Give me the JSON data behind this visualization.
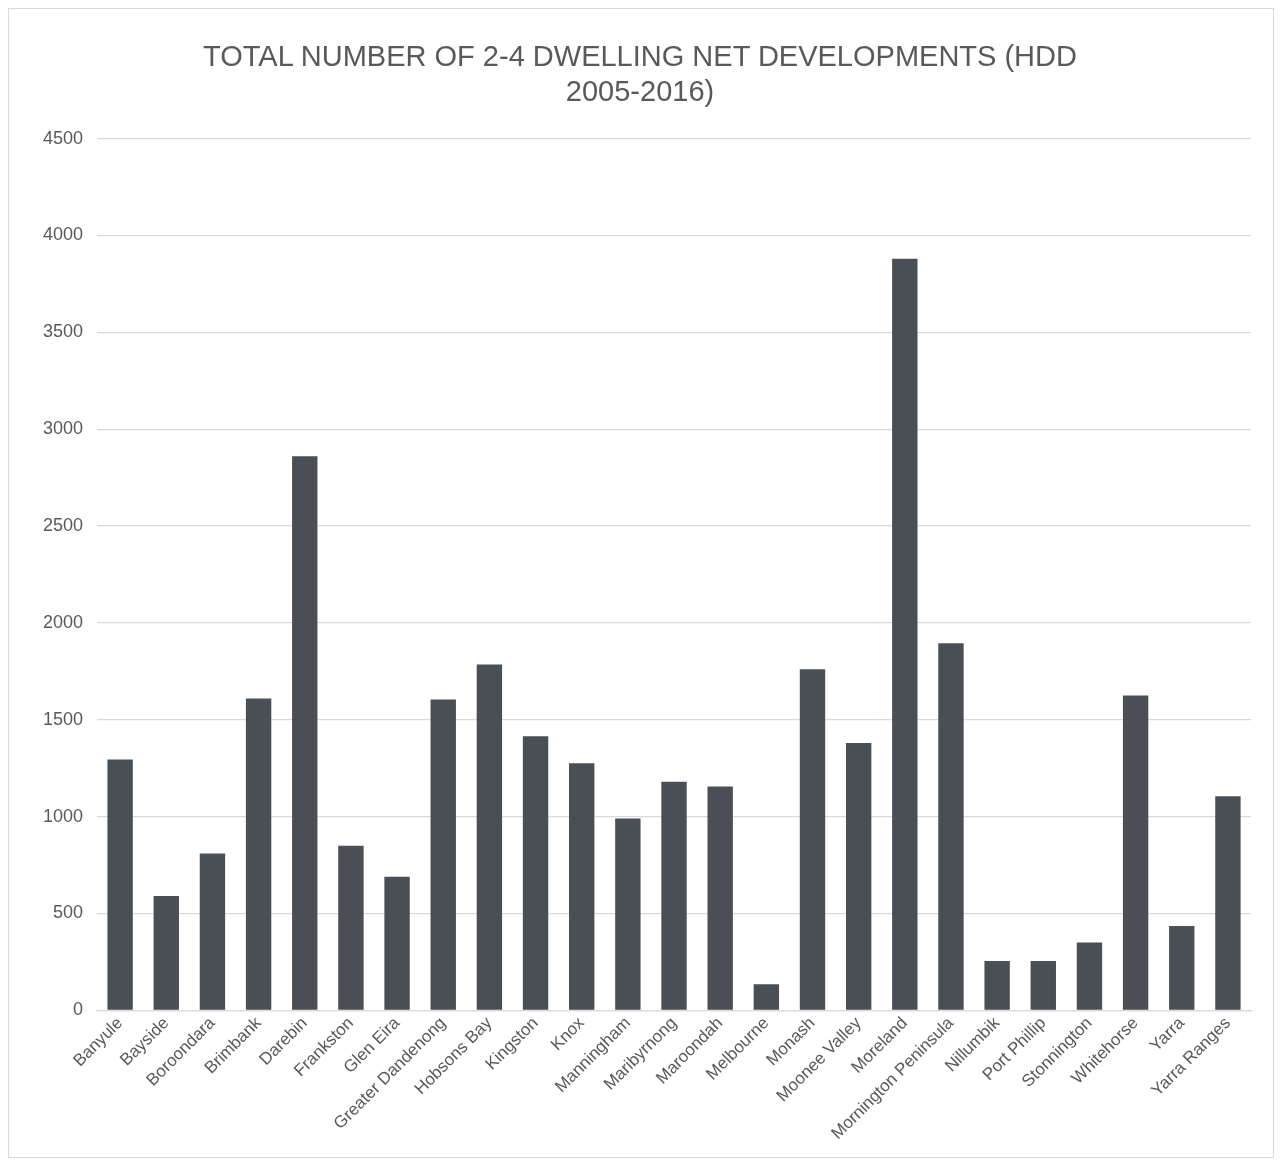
{
  "chart_data": {
    "type": "bar",
    "title": "TOTAL NUMBER OF 2-4 DWELLING NET DEVELOPMENTS (HDD 2005-2016)",
    "categories": [
      "Banyule",
      "Bayside",
      "Boroondara",
      "Brimbank",
      "Darebin",
      "Frankston",
      "Glen Eira",
      "Greater Dandenong",
      "Hobsons Bay",
      "Kingston",
      "Knox",
      "Manningham",
      "Maribyrnong",
      "Maroondah",
      "Melbourne",
      "Monash",
      "Moonee Valley",
      "Moreland",
      "Mornington Peninsula",
      "Nillumbik",
      "Port Phillip",
      "Stonnington",
      "Whitehorse",
      "Yarra",
      "Yarra Ranges"
    ],
    "values": [
      1295,
      590,
      810,
      1610,
      2860,
      850,
      690,
      1605,
      1785,
      1415,
      1275,
      990,
      1180,
      1155,
      135,
      1760,
      1380,
      3880,
      1895,
      255,
      255,
      350,
      1625,
      435,
      1105
    ],
    "color": "#4a4f55",
    "ylim": [
      0,
      4500
    ],
    "yticks": [
      0,
      500,
      1000,
      1500,
      2000,
      2500,
      3000,
      3500,
      4000,
      4500
    ],
    "grid": "y"
  }
}
